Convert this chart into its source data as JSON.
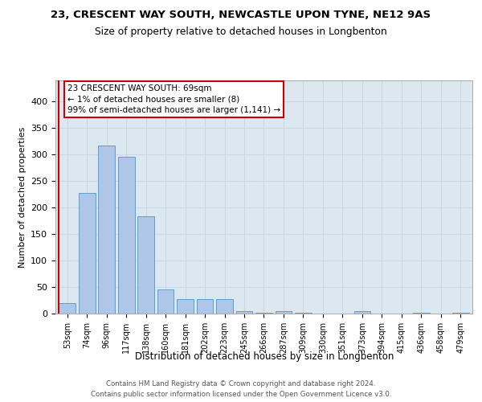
{
  "title1": "23, CRESCENT WAY SOUTH, NEWCASTLE UPON TYNE, NE12 9AS",
  "title2": "Size of property relative to detached houses in Longbenton",
  "xlabel": "Distribution of detached houses by size in Longbenton",
  "ylabel": "Number of detached properties",
  "categories": [
    "53sqm",
    "74sqm",
    "96sqm",
    "117sqm",
    "138sqm",
    "160sqm",
    "181sqm",
    "202sqm",
    "223sqm",
    "245sqm",
    "266sqm",
    "287sqm",
    "309sqm",
    "330sqm",
    "351sqm",
    "373sqm",
    "394sqm",
    "415sqm",
    "436sqm",
    "458sqm",
    "479sqm"
  ],
  "values": [
    20,
    228,
    317,
    296,
    183,
    45,
    27,
    27,
    27,
    5,
    2,
    4,
    2,
    0,
    0,
    4,
    0,
    0,
    2,
    0,
    2
  ],
  "bar_color": "#aec6e8",
  "bar_edge_color": "#5a9fd4",
  "annotation_text": "23 CRESCENT WAY SOUTH: 69sqm\n← 1% of detached houses are smaller (8)\n99% of semi-detached houses are larger (1,141) →",
  "annotation_box_facecolor": "#ffffff",
  "annotation_box_edgecolor": "#cc0000",
  "property_line_color": "#cc0000",
  "ylim": [
    0,
    440
  ],
  "yticks": [
    0,
    50,
    100,
    150,
    200,
    250,
    300,
    350,
    400
  ],
  "grid_color": "#c8d8e8",
  "bg_color": "#dce8f0",
  "footer1": "Contains HM Land Registry data © Crown copyright and database right 2024.",
  "footer2": "Contains public sector information licensed under the Open Government Licence v3.0."
}
